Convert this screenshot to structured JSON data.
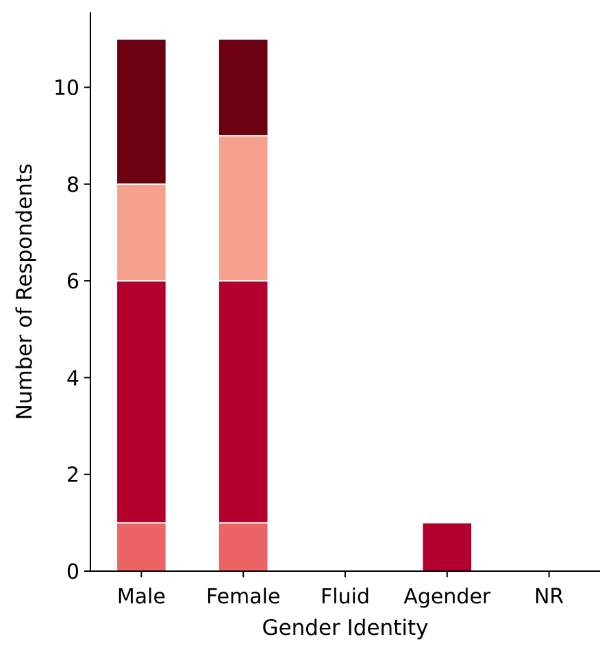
{
  "chart_data": {
    "type": "bar",
    "stacked": true,
    "title": "",
    "xlabel": "Gender Identity",
    "ylabel": "Number of Respondents",
    "categories": [
      "Male",
      "Female",
      "Fluid",
      "Agender",
      "NR"
    ],
    "ylim": [
      0,
      11.55
    ],
    "yticks": [
      0,
      2,
      4,
      6,
      8,
      10
    ],
    "grid": false,
    "legend": "none",
    "series": [
      {
        "color": "#ec6566",
        "values": [
          1,
          1,
          0,
          0,
          0
        ]
      },
      {
        "color": "#b3002d",
        "values": [
          5,
          5,
          0,
          1,
          0
        ]
      },
      {
        "color": "#f8a08e",
        "values": [
          2,
          3,
          0,
          0,
          0
        ]
      },
      {
        "color": "#6b0011",
        "values": [
          3,
          2,
          0,
          0,
          0
        ]
      }
    ]
  }
}
